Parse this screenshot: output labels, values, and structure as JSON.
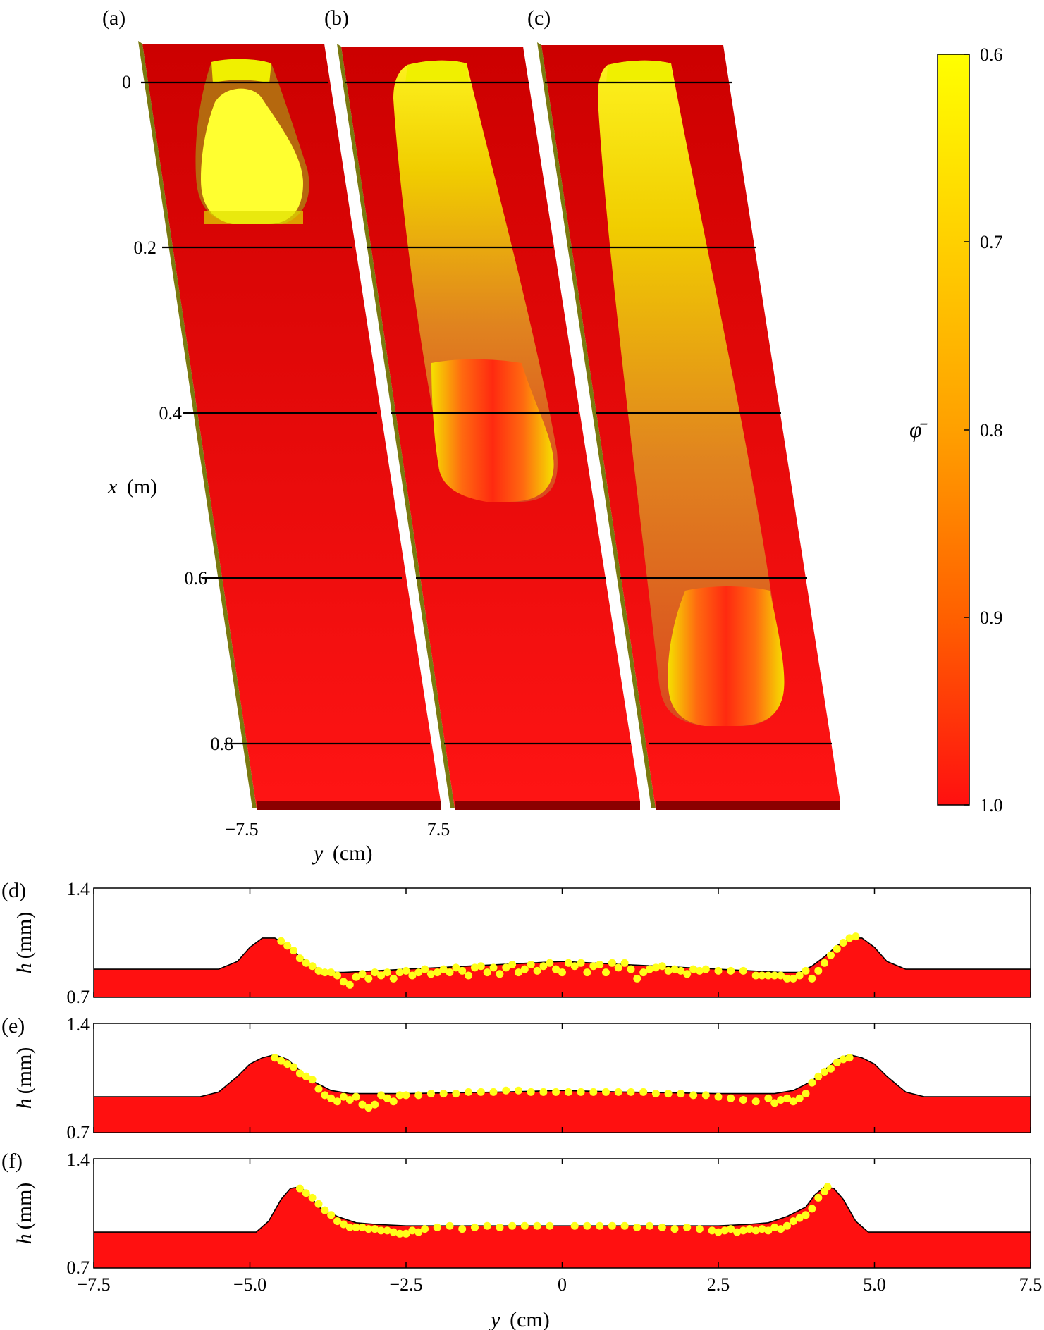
{
  "panel_labels": [
    "(a)",
    "(b)",
    "(c)",
    "(d)",
    "(e)",
    "(f)"
  ],
  "colors": {
    "red": "#ff1010",
    "dark_red": "#d40000",
    "yellow": "#ffff00",
    "orange": "#ff9a00",
    "edge": "#7a7a10",
    "marker": "#ffff1a"
  },
  "chart_data": [
    {
      "type": "heatmap",
      "panels": [
        "(a)",
        "(b)",
        "(c)"
      ],
      "ylabel_var": "x",
      "ylabel_unit": "(m)",
      "xlabel_var": "y",
      "xlabel_unit": "(cm)",
      "x_ticks": [
        "0",
        "0.2",
        "0.4",
        "0.6",
        "0.8"
      ],
      "x_tick_values": [
        0,
        0.2,
        0.4,
        0.6,
        0.8
      ],
      "y_ticks": [
        "−7.5",
        "7.5"
      ],
      "y_tick_values": [
        -7.5,
        7.5
      ],
      "flow_extent_m": [
        {
          "panel": "(a)",
          "start": 0,
          "front": 0.17
        },
        {
          "panel": "(b)",
          "start": 0,
          "front": 0.5
        },
        {
          "panel": "(c)",
          "start": 0,
          "front": 0.78
        }
      ],
      "colorbar": {
        "label": "φ̄",
        "ticks": [
          "0.6",
          "0.7",
          "0.8",
          "0.9",
          "1.0"
        ],
        "values": [
          0.6,
          0.7,
          0.8,
          0.9,
          1.0
        ],
        "range": [
          0.6,
          1.0
        ],
        "top_color": "#ffff00",
        "bottom_color": "#ff1010"
      }
    },
    {
      "type": "area",
      "panel": "(d)",
      "ylim": [
        0.7,
        1.4
      ],
      "xlim": [
        -7.5,
        7.5
      ],
      "y_ticks": [
        "0.7",
        "1.4"
      ],
      "ylabel_var": "h",
      "ylabel_unit": "(mm)",
      "profile": [
        [
          -7.5,
          0.88
        ],
        [
          -5.5,
          0.88
        ],
        [
          -5.2,
          0.93
        ],
        [
          -5.0,
          1.02
        ],
        [
          -4.8,
          1.08
        ],
        [
          -4.6,
          1.08
        ],
        [
          -4.4,
          1.03
        ],
        [
          -4.2,
          0.96
        ],
        [
          -4.0,
          0.9
        ],
        [
          -3.8,
          0.86
        ],
        [
          -3.5,
          0.86
        ],
        [
          -2.5,
          0.88
        ],
        [
          -1.5,
          0.9
        ],
        [
          -0.5,
          0.92
        ],
        [
          0,
          0.93
        ],
        [
          0.5,
          0.92
        ],
        [
          1.5,
          0.9
        ],
        [
          2.5,
          0.88
        ],
        [
          3.5,
          0.86
        ],
        [
          3.8,
          0.86
        ],
        [
          4.0,
          0.9
        ],
        [
          4.2,
          0.96
        ],
        [
          4.4,
          1.03
        ],
        [
          4.6,
          1.08
        ],
        [
          4.8,
          1.08
        ],
        [
          5.0,
          1.02
        ],
        [
          5.2,
          0.93
        ],
        [
          5.5,
          0.88
        ],
        [
          7.5,
          0.88
        ]
      ],
      "points": [
        [
          -4.5,
          1.06
        ],
        [
          -4.4,
          1.03
        ],
        [
          -4.3,
          1.0
        ],
        [
          -4.2,
          0.95
        ],
        [
          -4.1,
          0.92
        ],
        [
          -4.0,
          0.9
        ],
        [
          -3.9,
          0.87
        ],
        [
          -3.8,
          0.86
        ],
        [
          -3.7,
          0.86
        ],
        [
          -3.6,
          0.84
        ],
        [
          -3.5,
          0.8
        ],
        [
          -3.4,
          0.78
        ],
        [
          -3.3,
          0.83
        ],
        [
          -3.2,
          0.85
        ],
        [
          -3.1,
          0.82
        ],
        [
          -3.0,
          0.86
        ],
        [
          -2.9,
          0.84
        ],
        [
          -2.8,
          0.86
        ],
        [
          -2.7,
          0.82
        ],
        [
          -2.6,
          0.86
        ],
        [
          -2.5,
          0.87
        ],
        [
          -2.4,
          0.84
        ],
        [
          -2.3,
          0.86
        ],
        [
          -2.2,
          0.88
        ],
        [
          -2.1,
          0.85
        ],
        [
          -2.0,
          0.86
        ],
        [
          -1.9,
          0.88
        ],
        [
          -1.8,
          0.86
        ],
        [
          -1.7,
          0.89
        ],
        [
          -1.6,
          0.87
        ],
        [
          -1.5,
          0.84
        ],
        [
          -1.4,
          0.89
        ],
        [
          -1.3,
          0.9
        ],
        [
          -1.2,
          0.86
        ],
        [
          -1.1,
          0.89
        ],
        [
          -1.0,
          0.85
        ],
        [
          -0.9,
          0.89
        ],
        [
          -0.8,
          0.91
        ],
        [
          -0.7,
          0.86
        ],
        [
          -0.6,
          0.88
        ],
        [
          -0.5,
          0.91
        ],
        [
          -0.4,
          0.87
        ],
        [
          -0.3,
          0.9
        ],
        [
          -0.2,
          0.92
        ],
        [
          -0.1,
          0.88
        ],
        [
          0.0,
          0.86
        ],
        [
          0.1,
          0.92
        ],
        [
          0.2,
          0.9
        ],
        [
          0.3,
          0.92
        ],
        [
          0.4,
          0.86
        ],
        [
          0.5,
          0.9
        ],
        [
          0.6,
          0.91
        ],
        [
          0.7,
          0.86
        ],
        [
          0.8,
          0.92
        ],
        [
          0.9,
          0.89
        ],
        [
          1.0,
          0.92
        ],
        [
          1.1,
          0.88
        ],
        [
          1.2,
          0.82
        ],
        [
          1.3,
          0.86
        ],
        [
          1.4,
          0.88
        ],
        [
          1.5,
          0.89
        ],
        [
          1.6,
          0.9
        ],
        [
          1.7,
          0.87
        ],
        [
          1.8,
          0.88
        ],
        [
          1.9,
          0.87
        ],
        [
          2.0,
          0.85
        ],
        [
          2.1,
          0.88
        ],
        [
          2.2,
          0.87
        ],
        [
          2.3,
          0.88
        ],
        [
          2.5,
          0.87
        ],
        [
          2.7,
          0.87
        ],
        [
          2.9,
          0.87
        ],
        [
          3.1,
          0.84
        ],
        [
          3.2,
          0.84
        ],
        [
          3.3,
          0.84
        ],
        [
          3.4,
          0.84
        ],
        [
          3.5,
          0.84
        ],
        [
          3.6,
          0.82
        ],
        [
          3.7,
          0.82
        ],
        [
          3.8,
          0.84
        ],
        [
          3.9,
          0.87
        ],
        [
          4.0,
          0.82
        ],
        [
          4.1,
          0.87
        ],
        [
          4.2,
          0.92
        ],
        [
          4.3,
          0.97
        ],
        [
          4.4,
          1.01
        ],
        [
          4.5,
          1.05
        ],
        [
          4.6,
          1.08
        ],
        [
          4.7,
          1.09
        ]
      ]
    },
    {
      "type": "area",
      "panel": "(e)",
      "ylim": [
        0.7,
        1.4
      ],
      "xlim": [
        -7.5,
        7.5
      ],
      "y_ticks": [
        "0.7",
        "1.4"
      ],
      "ylabel_var": "h",
      "ylabel_unit": "(mm)",
      "profile": [
        [
          -7.5,
          0.93
        ],
        [
          -5.8,
          0.93
        ],
        [
          -5.5,
          0.96
        ],
        [
          -5.2,
          1.06
        ],
        [
          -5.0,
          1.14
        ],
        [
          -4.8,
          1.18
        ],
        [
          -4.6,
          1.2
        ],
        [
          -4.4,
          1.17
        ],
        [
          -4.2,
          1.1
        ],
        [
          -4.0,
          1.03
        ],
        [
          -3.7,
          0.97
        ],
        [
          -3.4,
          0.95
        ],
        [
          -2.5,
          0.95
        ],
        [
          -1.0,
          0.96
        ],
        [
          0,
          0.97
        ],
        [
          1.0,
          0.96
        ],
        [
          2.5,
          0.95
        ],
        [
          3.4,
          0.95
        ],
        [
          3.7,
          0.97
        ],
        [
          4.0,
          1.03
        ],
        [
          4.2,
          1.1
        ],
        [
          4.4,
          1.17
        ],
        [
          4.6,
          1.2
        ],
        [
          4.8,
          1.18
        ],
        [
          5.0,
          1.14
        ],
        [
          5.2,
          1.06
        ],
        [
          5.5,
          0.96
        ],
        [
          5.8,
          0.93
        ],
        [
          7.5,
          0.93
        ]
      ],
      "points": [
        [
          -4.6,
          1.18
        ],
        [
          -4.5,
          1.16
        ],
        [
          -4.4,
          1.14
        ],
        [
          -4.3,
          1.12
        ],
        [
          -4.2,
          1.08
        ],
        [
          -4.1,
          1.06
        ],
        [
          -4.0,
          1.04
        ],
        [
          -3.9,
          0.98
        ],
        [
          -3.8,
          0.94
        ],
        [
          -3.7,
          0.92
        ],
        [
          -3.6,
          0.9
        ],
        [
          -3.5,
          0.93
        ],
        [
          -3.4,
          0.91
        ],
        [
          -3.3,
          0.93
        ],
        [
          -3.2,
          0.88
        ],
        [
          -3.1,
          0.86
        ],
        [
          -3.0,
          0.88
        ],
        [
          -2.9,
          0.94
        ],
        [
          -2.8,
          0.92
        ],
        [
          -2.7,
          0.9
        ],
        [
          -2.6,
          0.94
        ],
        [
          -2.5,
          0.94
        ],
        [
          -2.3,
          0.94
        ],
        [
          -2.1,
          0.95
        ],
        [
          -1.9,
          0.95
        ],
        [
          -1.7,
          0.95
        ],
        [
          -1.5,
          0.96
        ],
        [
          -1.3,
          0.96
        ],
        [
          -1.1,
          0.96
        ],
        [
          -0.9,
          0.97
        ],
        [
          -0.7,
          0.97
        ],
        [
          -0.5,
          0.96
        ],
        [
          -0.3,
          0.96
        ],
        [
          -0.1,
          0.96
        ],
        [
          0.1,
          0.96
        ],
        [
          0.3,
          0.96
        ],
        [
          0.5,
          0.96
        ],
        [
          0.7,
          0.96
        ],
        [
          0.9,
          0.96
        ],
        [
          1.1,
          0.96
        ],
        [
          1.3,
          0.96
        ],
        [
          1.5,
          0.95
        ],
        [
          1.7,
          0.95
        ],
        [
          1.9,
          0.95
        ],
        [
          2.1,
          0.94
        ],
        [
          2.3,
          0.94
        ],
        [
          2.5,
          0.93
        ],
        [
          2.7,
          0.92
        ],
        [
          2.9,
          0.91
        ],
        [
          3.1,
          0.9
        ],
        [
          3.3,
          0.92
        ],
        [
          3.4,
          0.89
        ],
        [
          3.5,
          0.91
        ],
        [
          3.6,
          0.92
        ],
        [
          3.7,
          0.9
        ],
        [
          3.8,
          0.92
        ],
        [
          3.9,
          0.95
        ],
        [
          4.0,
          1.02
        ],
        [
          4.1,
          1.06
        ],
        [
          4.2,
          1.09
        ],
        [
          4.3,
          1.11
        ],
        [
          4.4,
          1.15
        ],
        [
          4.5,
          1.17
        ],
        [
          4.6,
          1.18
        ]
      ]
    },
    {
      "type": "area",
      "panel": "(f)",
      "ylim": [
        0.7,
        1.4
      ],
      "xlim": [
        -7.5,
        7.5
      ],
      "y_ticks": [
        "0.7",
        "1.4"
      ],
      "ylabel_var": "h",
      "ylabel_unit": "(mm)",
      "xlabel_var": "y",
      "xlabel_unit": "(cm)",
      "x_ticks": [
        "−7.5",
        "−5.0",
        "−2.5",
        "0",
        "2.5",
        "5.0",
        "7.5"
      ],
      "x_tick_values": [
        -7.5,
        -5.0,
        -2.5,
        0,
        2.5,
        5.0,
        7.5
      ],
      "profile": [
        [
          -7.5,
          0.93
        ],
        [
          -4.9,
          0.93
        ],
        [
          -4.7,
          1.0
        ],
        [
          -4.5,
          1.14
        ],
        [
          -4.35,
          1.21
        ],
        [
          -4.2,
          1.22
        ],
        [
          -4.05,
          1.17
        ],
        [
          -3.9,
          1.09
        ],
        [
          -3.6,
          1.03
        ],
        [
          -3.3,
          0.99
        ],
        [
          -3.0,
          0.98
        ],
        [
          -2.5,
          0.97
        ],
        [
          2.5,
          0.97
        ],
        [
          3.0,
          0.98
        ],
        [
          3.3,
          0.99
        ],
        [
          3.6,
          1.03
        ],
        [
          3.9,
          1.09
        ],
        [
          4.05,
          1.17
        ],
        [
          4.2,
          1.22
        ],
        [
          4.35,
          1.21
        ],
        [
          4.5,
          1.14
        ],
        [
          4.7,
          1.0
        ],
        [
          4.9,
          0.93
        ],
        [
          7.5,
          0.93
        ]
      ],
      "points": [
        [
          -4.2,
          1.21
        ],
        [
          -4.1,
          1.18
        ],
        [
          -4.0,
          1.15
        ],
        [
          -3.9,
          1.11
        ],
        [
          -3.8,
          1.07
        ],
        [
          -3.7,
          1.04
        ],
        [
          -3.6,
          1.0
        ],
        [
          -3.5,
          0.98
        ],
        [
          -3.4,
          0.96
        ],
        [
          -3.3,
          0.96
        ],
        [
          -3.2,
          0.96
        ],
        [
          -3.1,
          0.95
        ],
        [
          -3.0,
          0.95
        ],
        [
          -2.9,
          0.94
        ],
        [
          -2.8,
          0.94
        ],
        [
          -2.7,
          0.93
        ],
        [
          -2.6,
          0.92
        ],
        [
          -2.5,
          0.92
        ],
        [
          -2.4,
          0.94
        ],
        [
          -2.3,
          0.93
        ],
        [
          -2.2,
          0.95
        ],
        [
          -2.0,
          0.96
        ],
        [
          -1.8,
          0.97
        ],
        [
          -1.6,
          0.95
        ],
        [
          -1.4,
          0.96
        ],
        [
          -1.2,
          0.97
        ],
        [
          -1.0,
          0.96
        ],
        [
          -0.8,
          0.97
        ],
        [
          -0.6,
          0.97
        ],
        [
          -0.4,
          0.97
        ],
        [
          -0.2,
          0.97
        ],
        [
          0.2,
          0.97
        ],
        [
          0.4,
          0.97
        ],
        [
          0.6,
          0.97
        ],
        [
          0.8,
          0.97
        ],
        [
          1.0,
          0.97
        ],
        [
          1.2,
          0.96
        ],
        [
          1.4,
          0.97
        ],
        [
          1.6,
          0.96
        ],
        [
          1.8,
          0.95
        ],
        [
          2.0,
          0.96
        ],
        [
          2.2,
          0.95
        ],
        [
          2.4,
          0.94
        ],
        [
          2.5,
          0.93
        ],
        [
          2.6,
          0.94
        ],
        [
          2.7,
          0.95
        ],
        [
          2.8,
          0.93
        ],
        [
          2.9,
          0.94
        ],
        [
          3.0,
          0.95
        ],
        [
          3.1,
          0.94
        ],
        [
          3.2,
          0.95
        ],
        [
          3.3,
          0.94
        ],
        [
          3.4,
          0.96
        ],
        [
          3.5,
          0.95
        ],
        [
          3.6,
          0.97
        ],
        [
          3.7,
          1.0
        ],
        [
          3.8,
          1.02
        ],
        [
          3.9,
          1.04
        ],
        [
          4.0,
          1.08
        ],
        [
          4.1,
          1.15
        ],
        [
          4.2,
          1.19
        ],
        [
          4.25,
          1.22
        ]
      ]
    }
  ]
}
